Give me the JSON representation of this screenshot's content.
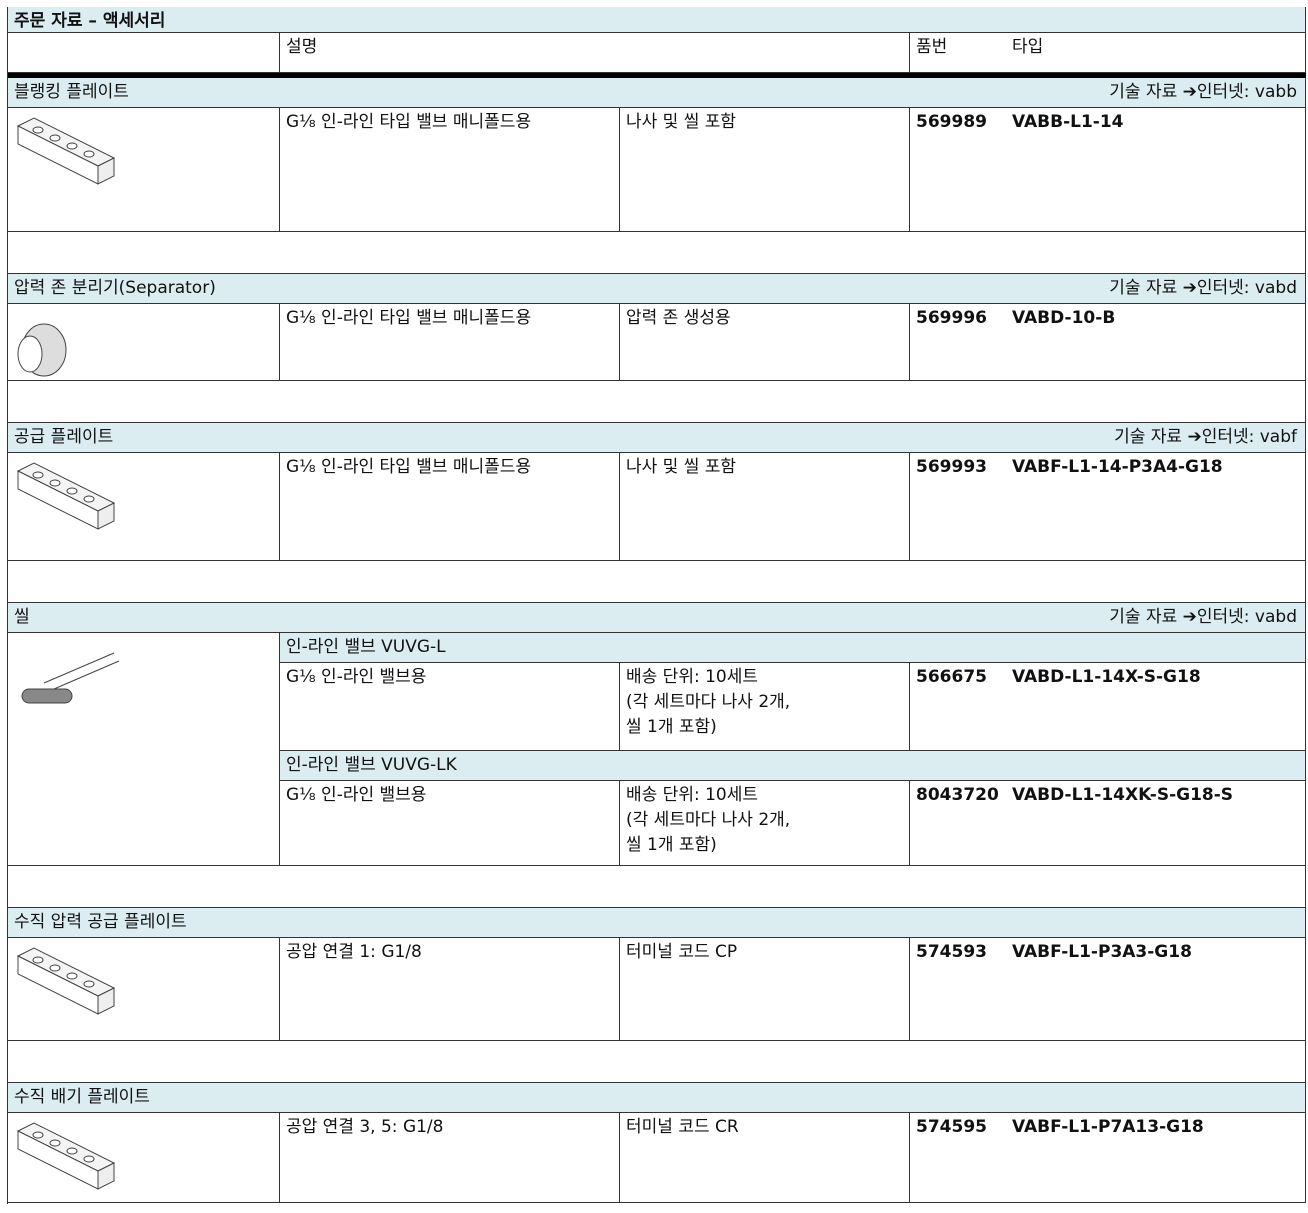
{
  "title": "주문 자료 – 액세서리",
  "header": {
    "description": "설명",
    "part_no": "품번",
    "type": "타입"
  },
  "sections": [
    {
      "name": "블랭킹 플레이트",
      "ref": "기술 자료 ➔인터넷: vabb",
      "groups": [
        {
          "items": [
            {
              "desc": "G⅛ 인-라인 타입 밸브 매니폴드용",
              "note": "나사 및 씰 포함",
              "part": "569989",
              "type": "VABB-L1-14"
            }
          ]
        }
      ]
    },
    {
      "name": "압력 존 분리기(Separator)",
      "ref": "기술 자료 ➔인터넷: vabd",
      "groups": [
        {
          "items": [
            {
              "desc": "G⅛ 인-라인 타입 밸브 매니폴드용",
              "note": "압력 존 생성용",
              "part": "569996",
              "type": "VABD-10-B"
            }
          ]
        }
      ]
    },
    {
      "name": "공급 플레이트",
      "ref": "기술 자료 ➔인터넷: vabf",
      "groups": [
        {
          "items": [
            {
              "desc": "G⅛ 인-라인 타입 밸브 매니폴드용",
              "note": "나사 및 씰 포함",
              "part": "569993",
              "type": "VABF-L1-14-P3A4-G18"
            }
          ]
        }
      ]
    },
    {
      "name": "씰",
      "ref": "기술 자료 ➔인터넷: vabd",
      "groups": [
        {
          "label": "인-라인 밸브 VUVG-L",
          "items": [
            {
              "desc": "G⅛ 인-라인 밸브용",
              "note": "배송 단위: 10세트\n(각 세트마다 나사 2개,\n씰 1개 포함)",
              "part": "566675",
              "type": "VABD-L1-14X-S-G18"
            }
          ]
        },
        {
          "label": "인-라인 밸브 VUVG-LK",
          "items": [
            {
              "desc": "G⅛ 인-라인 밸브용",
              "note": "배송 단위: 10세트\n(각 세트마다 나사 2개,\n씰 1개 포함)",
              "part": "8043720",
              "type": "VABD-L1-14XK-S-G18-S"
            }
          ]
        }
      ]
    },
    {
      "name": "수직 압력 공급 플레이트",
      "groups": [
        {
          "items": [
            {
              "desc": "공압 연결 1: G1/8",
              "note": "터미널 코드 CP",
              "part": "574593",
              "type": "VABF-L1-P3A3-G18"
            }
          ]
        }
      ]
    },
    {
      "name": "수직 배기 플레이트",
      "groups": [
        {
          "items": [
            {
              "desc": "공압 연결 3, 5: G1/8",
              "note": "터미널 코드 CR",
              "part": "574595",
              "type": "VABF-L1-P7A13-G18"
            }
          ]
        }
      ]
    }
  ]
}
